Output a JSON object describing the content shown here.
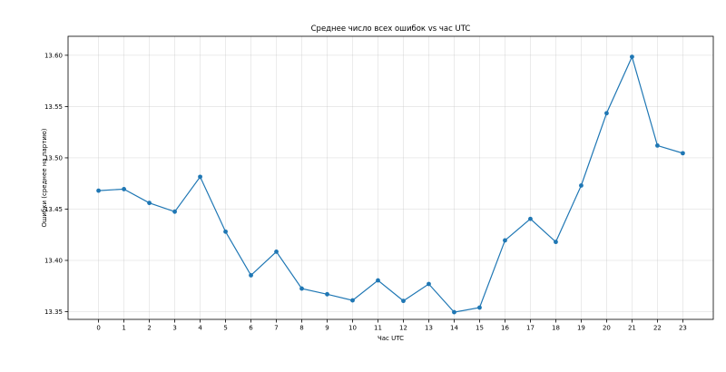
{
  "chart_data": {
    "type": "line",
    "title": "Среднее число всех ошибок vs час UTC",
    "xlabel": "Час UTC",
    "ylabel": "Ошибки (среднее на партию)",
    "x": [
      0,
      1,
      2,
      3,
      4,
      5,
      6,
      7,
      8,
      9,
      10,
      11,
      12,
      13,
      14,
      15,
      16,
      17,
      18,
      19,
      20,
      21,
      22,
      23
    ],
    "series": [
      {
        "values": [
          13.468,
          13.4695,
          13.456,
          13.4475,
          13.4815,
          13.428,
          13.3855,
          13.4085,
          13.3725,
          13.367,
          13.361,
          13.3805,
          13.3605,
          13.377,
          13.3495,
          13.354,
          13.4195,
          13.4405,
          13.418,
          13.473,
          13.5435,
          13.5985,
          13.512,
          13.5045
        ],
        "color": "#1f77b4"
      }
    ],
    "ylim": [
      13.3425,
      13.6185
    ],
    "yticks": [
      13.35,
      13.4,
      13.45,
      13.5,
      13.55,
      13.6
    ],
    "ytick_labels": [
      "13.35",
      "13.40",
      "13.45",
      "13.50",
      "13.55",
      "13.60"
    ],
    "xlim": [
      -1.2,
      24.2
    ],
    "grid": true,
    "marker": "circle"
  }
}
